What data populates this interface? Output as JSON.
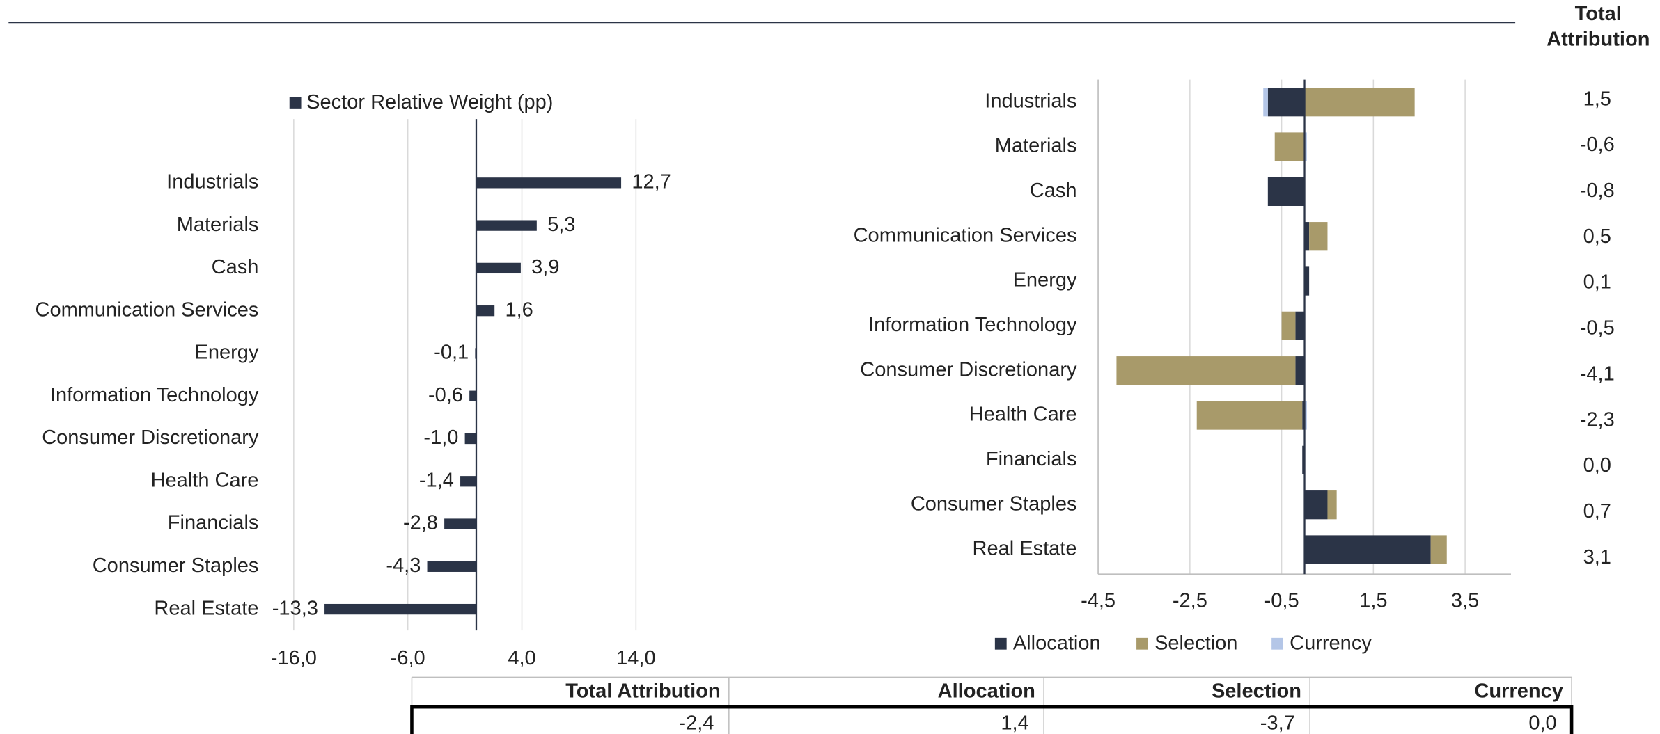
{
  "chart_data": [
    {
      "type": "bar",
      "legend": "Sector Relative Weight (pp)",
      "categories": [
        "Industrials",
        "Materials",
        "Cash",
        "Communication Services",
        "Energy",
        "Information Technology",
        "Consumer Discretionary",
        "Health Care",
        "Financials",
        "Consumer Staples",
        "Real Estate"
      ],
      "values": [
        12.7,
        5.3,
        3.9,
        1.6,
        -0.1,
        -0.6,
        -1.0,
        -1.4,
        -2.8,
        -4.3,
        -13.3
      ],
      "value_labels": [
        "12,7",
        "5,3",
        "3,9",
        "1,6",
        "-0,1",
        "-0,6",
        "-1,0",
        "-1,4",
        "-2,8",
        "-4,3",
        "-13,3"
      ],
      "color": "#2b3447",
      "xlim": [
        -16,
        20
      ],
      "xticks": [
        {
          "value": -16,
          "label": "-16,0"
        },
        {
          "value": -6,
          "label": "-6,0"
        },
        {
          "value": 4,
          "label": "4,0"
        },
        {
          "value": 14,
          "label": "14,0"
        }
      ],
      "grid": true
    },
    {
      "type": "stacked_bar",
      "categories": [
        "Industrials",
        "Materials",
        "Cash",
        "Communication Services",
        "Energy",
        "Information Technology",
        "Consumer Discretionary",
        "Health Care",
        "Financials",
        "Consumer Staples",
        "Real Estate"
      ],
      "series": [
        {
          "name": "Allocation",
          "color": "#2b3447",
          "values": [
            -0.8,
            0.0,
            -0.8,
            0.1,
            0.1,
            -0.2,
            -0.2,
            -0.05,
            -0.05,
            0.5,
            2.75
          ]
        },
        {
          "name": "Selection",
          "color": "#a89a6a",
          "values": [
            2.4,
            -0.65,
            0.0,
            0.4,
            0.0,
            -0.3,
            -3.9,
            -2.3,
            0.0,
            0.2,
            0.35
          ]
        },
        {
          "name": "Currency",
          "color": "#b4c6e7",
          "values": [
            -0.1,
            0.05,
            0.0,
            0.0,
            0.0,
            0.0,
            0.0,
            0.05,
            0.0,
            0.0,
            0.0
          ]
        }
      ],
      "xlim": [
        -4.5,
        4.5
      ],
      "xticks": [
        {
          "value": -4.5,
          "label": "-4,5"
        },
        {
          "value": -2.5,
          "label": "-2,5"
        },
        {
          "value": -0.5,
          "label": "-0,5"
        },
        {
          "value": 1.5,
          "label": "1,5"
        },
        {
          "value": 3.5,
          "label": "3,5"
        }
      ],
      "grid": true
    }
  ],
  "total_attribution": {
    "header": "Total Attribution",
    "values": [
      "1,5",
      "-0,6",
      "-0,8",
      "0,5",
      "0,1",
      "-0,5",
      "-4,1",
      "-2,3",
      "0,0",
      "0,7",
      "3,1"
    ]
  },
  "table": {
    "header": [
      "Total Attribution",
      "Allocation",
      "Selection",
      "Currency"
    ],
    "rows": [
      [
        "-2,4",
        "1,4",
        "-3,7",
        "0,0"
      ]
    ]
  }
}
